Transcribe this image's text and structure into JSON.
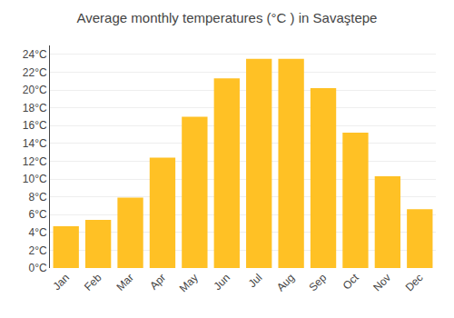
{
  "chart_data": {
    "type": "bar",
    "title": "Average monthly temperatures (°C ) in Savaştepe",
    "categories": [
      "Jan",
      "Feb",
      "Mar",
      "Apr",
      "May",
      "Jun",
      "Jul",
      "Aug",
      "Sep",
      "Oct",
      "Nov",
      "Dec"
    ],
    "values": [
      4.7,
      5.4,
      7.9,
      12.4,
      17.0,
      21.3,
      23.5,
      23.5,
      20.2,
      15.2,
      10.3,
      6.6
    ],
    "color": "#FFC125",
    "ylim": [
      0,
      25
    ],
    "yticks": [
      {
        "value": 0,
        "label": "0°C"
      },
      {
        "value": 2,
        "label": "2°C"
      },
      {
        "value": 4,
        "label": "4°C"
      },
      {
        "value": 6,
        "label": "6°C"
      },
      {
        "value": 8,
        "label": "8°C"
      },
      {
        "value": 10,
        "label": "10°C"
      },
      {
        "value": 12,
        "label": "12°C"
      },
      {
        "value": 14,
        "label": "14°C"
      },
      {
        "value": 16,
        "label": "16°C"
      },
      {
        "value": 18,
        "label": "18°C"
      },
      {
        "value": 20,
        "label": "20°C"
      },
      {
        "value": 22,
        "label": "22°C"
      },
      {
        "value": 24,
        "label": "24°C"
      }
    ],
    "grid": true
  }
}
